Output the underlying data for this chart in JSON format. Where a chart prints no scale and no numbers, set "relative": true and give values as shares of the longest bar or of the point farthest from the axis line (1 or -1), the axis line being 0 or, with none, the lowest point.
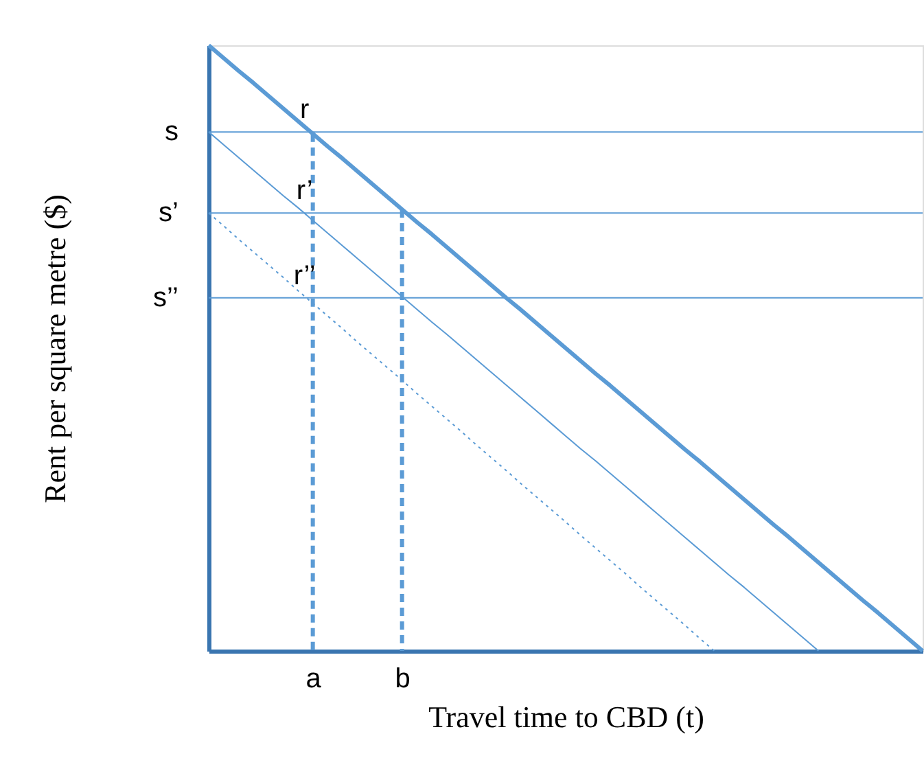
{
  "chart_data": {
    "type": "line",
    "relative": true,
    "xlabel": "Travel time to CBD (t)",
    "ylabel": "Rent per square metre ($)",
    "marker": "none",
    "categories": [
      null,
      null,
      null,
      null,
      null,
      null,
      null,
      "a",
      null,
      null,
      null,
      null,
      null,
      "b",
      null,
      null,
      null,
      null,
      null,
      null,
      null,
      null,
      null,
      null,
      null,
      null,
      null,
      null,
      null,
      null,
      null,
      null,
      null,
      null,
      null,
      null,
      null,
      null,
      null,
      null,
      null,
      null,
      null,
      null,
      null,
      null,
      null,
      null,
      null
    ],
    "series": [
      {
        "color": "#5b9bd5",
        "line_style": "solid",
        "values": [
          1,
          0.979,
          0.958,
          0.938,
          0.917,
          0.896,
          0.875,
          0.854,
          0.833,
          0.813,
          0.792,
          0.771,
          0.75,
          0.729,
          0.708,
          0.688,
          0.667,
          0.646,
          0.625,
          0.604,
          0.583,
          0.563,
          0.542,
          0.521,
          0.5,
          0.479,
          0.458,
          0.438,
          0.417,
          0.396,
          0.375,
          0.354,
          0.333,
          0.313,
          0.292,
          0.271,
          0.25,
          0.229,
          0.208,
          0.188,
          0.167,
          0.146,
          0.125,
          0.104,
          0.083,
          0.063,
          0.042,
          0.021,
          0
        ]
      },
      {
        "color": "#5b9bd5",
        "line_style": "solid",
        "values": [
          0.857,
          0.836,
          0.815,
          0.794,
          0.773,
          0.752,
          0.732,
          0.711,
          0.69,
          0.669,
          0.648,
          0.627,
          0.606,
          0.585,
          0.564,
          0.543,
          0.523,
          0.502,
          0.481,
          0.46,
          0.439,
          0.418,
          0.397,
          0.376,
          0.355,
          0.334,
          0.314,
          0.293,
          0.272,
          0.251,
          0.23,
          0.209,
          0.188,
          0.167,
          0.146,
          0.125,
          0.105,
          0.084,
          0.063,
          0.042,
          0.021,
          0,
          null,
          null,
          null,
          null,
          null,
          null,
          null
        ]
      },
      {
        "color": "#5b9bd5",
        "line_style": "dotted",
        "values": [
          0.723,
          0.702,
          0.68,
          0.659,
          0.638,
          0.617,
          0.595,
          0.574,
          0.553,
          0.532,
          0.51,
          0.489,
          0.468,
          0.447,
          0.425,
          0.404,
          0.383,
          0.362,
          0.34,
          0.319,
          0.298,
          0.276,
          0.255,
          0.234,
          0.213,
          0.191,
          0.17,
          0.149,
          0.128,
          0.106,
          0.085,
          0.064,
          0.043,
          0.021,
          0,
          null,
          null,
          null,
          null,
          null,
          null,
          null,
          null,
          null,
          null,
          null,
          null,
          null,
          null
        ]
      }
    ],
    "ref_lines": [
      {
        "axis": "y",
        "value": 0.857,
        "label": "s",
        "color": "#5b9bd5"
      },
      {
        "axis": "y",
        "value": 0.723,
        "label": "s’",
        "color": "#5b9bd5"
      },
      {
        "axis": "y",
        "value": 0.583,
        "label": "s’’",
        "color": "#5b9bd5"
      },
      {
        "axis": "x",
        "value": "a",
        "color": "#5b9bd5",
        "line_style": "dashed"
      },
      {
        "axis": "x",
        "value": "b",
        "color": "#5b9bd5",
        "line_style": "dashed"
      }
    ],
    "annotations": [
      {
        "text": "r",
        "x": "a",
        "y": 0.857
      },
      {
        "text": "r’",
        "x": "a",
        "y": 0.723
      },
      {
        "text": "r’’",
        "x": "a",
        "y": 0.583
      }
    ]
  }
}
